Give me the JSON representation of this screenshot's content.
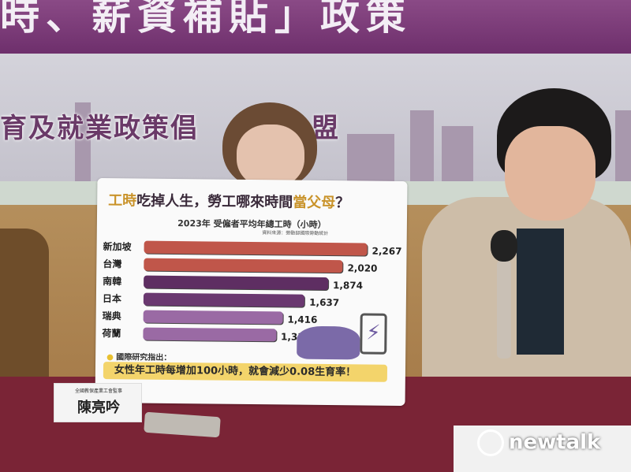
{
  "banner": {
    "text": "時、薪資補貼」政策"
  },
  "backdrop": {
    "subtitle": "育及就業政策倡",
    "subtitle_end": "盟"
  },
  "board": {
    "title_hl1": "工時",
    "title_mid": "吃掉人生，勞工哪來時間",
    "title_hl2": "當父母",
    "title_end": "？",
    "note_label": "國際研究指出：",
    "note": "女性年工時每增加100小時，就會減少0.08生育率！"
  },
  "chart_data": {
    "type": "bar",
    "title": "2023年 受僱者平均年總工時（小時）",
    "source": "資料來源：勞動部國際勞動統計",
    "categories": [
      "新加坡",
      "台灣",
      "南韓",
      "日本",
      "瑞典",
      "荷蘭"
    ],
    "values": [
      2267,
      2020,
      1874,
      1637,
      1416,
      1351
    ],
    "value_labels": [
      "2,267",
      "2,020",
      "1,874",
      "1,637",
      "1,416",
      "1,351"
    ],
    "colors": [
      "#c0564a",
      "#c0564a",
      "#5e2e62",
      "#6a3870",
      "#9a6aa4",
      "#9a6aa4"
    ]
  },
  "nameplate": {
    "org": "全國教保產業工會監事",
    "name": "陳亮吟"
  },
  "watermark": {
    "text": "newtalk"
  }
}
